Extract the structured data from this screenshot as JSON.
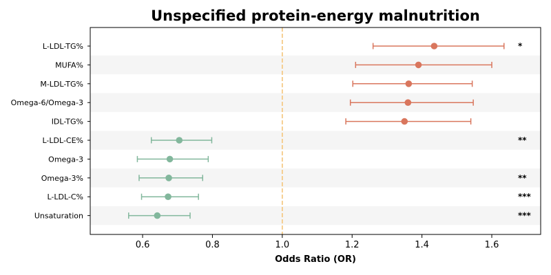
{
  "chart_data": {
    "type": "forest",
    "title": "Unspecified protein-energy malnutrition",
    "xlabel": "Odds Ratio (OR)",
    "xlim": [
      0.45,
      1.74
    ],
    "xticks": [
      "0.6",
      "0.8",
      "1.0",
      "1.2",
      "1.4",
      "1.6"
    ],
    "xtick_values": [
      0.6,
      0.8,
      1.0,
      1.2,
      1.4,
      1.6
    ],
    "reference_line": 1.0,
    "colors": {
      "positive": "#d9765d",
      "negative": "#82b79c",
      "reference": "#f5c57a",
      "band": "#f5f5f5"
    },
    "rows": [
      {
        "label": "L-LDL-TG%",
        "or": 1.435,
        "lower": 1.26,
        "upper": 1.635,
        "sig": "*"
      },
      {
        "label": "MUFA%",
        "or": 1.39,
        "lower": 1.21,
        "upper": 1.6,
        "sig": ""
      },
      {
        "label": "M-LDL-TG%",
        "or": 1.362,
        "lower": 1.202,
        "upper": 1.544,
        "sig": ""
      },
      {
        "label": "Omega-6/Omega-3",
        "or": 1.36,
        "lower": 1.195,
        "upper": 1.547,
        "sig": ""
      },
      {
        "label": "IDL-TG%",
        "or": 1.35,
        "lower": 1.182,
        "upper": 1.54,
        "sig": ""
      },
      {
        "label": "L-LDL-CE%",
        "or": 0.705,
        "lower": 0.625,
        "upper": 0.798,
        "sig": "**"
      },
      {
        "label": "Omega-3",
        "or": 0.678,
        "lower": 0.585,
        "upper": 0.788,
        "sig": ""
      },
      {
        "label": "Omega-3%",
        "or": 0.675,
        "lower": 0.59,
        "upper": 0.772,
        "sig": "**"
      },
      {
        "label": "L-LDL-C%",
        "or": 0.673,
        "lower": 0.597,
        "upper": 0.76,
        "sig": "***"
      },
      {
        "label": "Unsaturation",
        "or": 0.642,
        "lower": 0.56,
        "upper": 0.736,
        "sig": "***"
      }
    ]
  }
}
